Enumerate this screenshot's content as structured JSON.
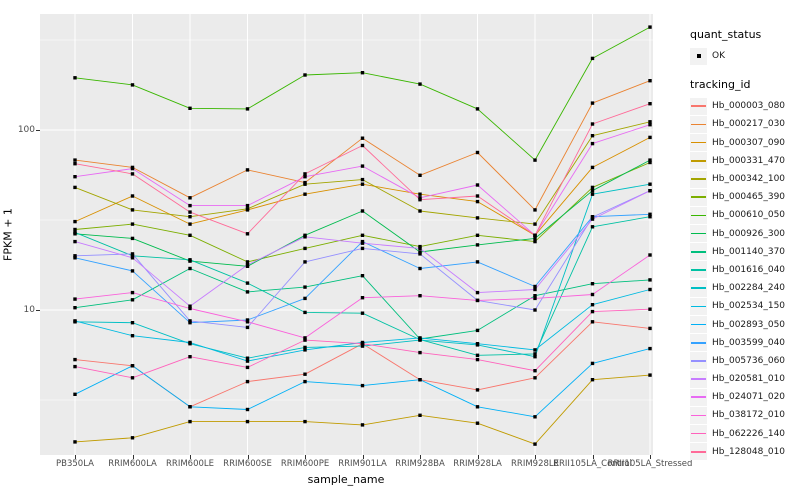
{
  "chart_data": {
    "type": "line",
    "title": "",
    "xlabel": "sample_name",
    "ylabel": "FPKM + 1",
    "y_scale": "log10",
    "ylim": [
      1.56,
      441
    ],
    "grid": true,
    "legend_position": "right",
    "panel_bg": "#EBEBEB",
    "grid_color": "#FFFFFF",
    "point_color": "#000000",
    "y_ticks": [
      {
        "value": 100,
        "label": "100"
      },
      {
        "value": 10,
        "label": "10"
      }
    ],
    "y_minor_ticks": [
      3.1623,
      31.623,
      316.23
    ],
    "legend": {
      "quant_status_title": "quant_status",
      "quant_status_ok": "OK",
      "tracking_title": "tracking_id"
    },
    "categories": [
      "PB350LA",
      "RRIM600LA",
      "RRIM600LE",
      "RRIM600SE",
      "RRIM600PE",
      "RRIM901LA",
      "RRIM928BA",
      "RRIM928LA",
      "RRIM928LE",
      "RRII105LA_Control",
      "RRII105LA_Stressed"
    ],
    "series": [
      {
        "name": "Hb_000003_080",
        "color": "#F8766D",
        "values": [
          5.3,
          4.9,
          2.9,
          4.0,
          4.4,
          6.5,
          4.1,
          3.6,
          4.2,
          8.6,
          7.9
        ]
      },
      {
        "name": "Hb_000217_030",
        "color": "#EA8331",
        "values": [
          68,
          62,
          42,
          60,
          51,
          90,
          56,
          75,
          36,
          141,
          188
        ]
      },
      {
        "name": "Hb_000307_090",
        "color": "#D89000",
        "values": [
          31,
          43,
          30,
          36,
          44,
          50,
          44,
          40,
          26,
          62,
          91
        ]
      },
      {
        "name": "Hb_000331_470",
        "color": "#C09B00",
        "values": [
          1.85,
          1.95,
          2.4,
          2.4,
          2.4,
          2.3,
          2.6,
          2.35,
          1.8,
          4.1,
          4.35
        ]
      },
      {
        "name": "Hb_000342_100",
        "color": "#A3A500",
        "values": [
          48,
          36,
          33,
          36.5,
          50,
          53,
          35.5,
          32.5,
          30,
          93,
          111
        ]
      },
      {
        "name": "Hb_000465_390",
        "color": "#7CAE00",
        "values": [
          28,
          30,
          26,
          18.5,
          22,
          26,
          22.5,
          26,
          24,
          48,
          66
        ]
      },
      {
        "name": "Hb_000610_050",
        "color": "#39B600",
        "values": [
          195,
          178,
          132,
          131,
          202,
          208,
          180,
          131,
          68,
          250,
          373
        ]
      },
      {
        "name": "Hb_000926_300",
        "color": "#00BB4E",
        "values": [
          26.5,
          25,
          18.7,
          17.5,
          26,
          35.5,
          21,
          23,
          25,
          46,
          68
        ]
      },
      {
        "name": "Hb_001140_370",
        "color": "#00BF7D",
        "values": [
          10.3,
          11.4,
          17,
          12.6,
          13.4,
          15.5,
          6.9,
          7.7,
          12,
          14,
          14.7
        ]
      },
      {
        "name": "Hb_001616_040",
        "color": "#00C1A3",
        "values": [
          27,
          20,
          19,
          14.1,
          9.7,
          9.6,
          6.85,
          5.6,
          5.7,
          29,
          33
        ]
      },
      {
        "name": "Hb_002284_240",
        "color": "#00BFC4",
        "values": [
          8.6,
          8.5,
          6.5,
          5.4,
          6.2,
          6.3,
          6.8,
          6.4,
          5.5,
          44,
          50
        ]
      },
      {
        "name": "Hb_002534_150",
        "color": "#00BAE0",
        "values": [
          8.7,
          7.2,
          6.6,
          5.2,
          6.0,
          6.6,
          7.0,
          6.5,
          6.0,
          10.7,
          13
        ]
      },
      {
        "name": "Hb_002893_050",
        "color": "#00B0F6",
        "values": [
          3.4,
          4.9,
          2.9,
          2.8,
          4.0,
          3.8,
          4.1,
          2.9,
          2.55,
          5.05,
          6.1
        ]
      },
      {
        "name": "Hb_003599_040",
        "color": "#35A2FF",
        "values": [
          19.5,
          16.5,
          8.5,
          8.8,
          11.6,
          24,
          17,
          18.5,
          13.5,
          33,
          34
        ]
      },
      {
        "name": "Hb_005736_060",
        "color": "#9590FF",
        "values": [
          20,
          20.5,
          8.7,
          8.0,
          18.5,
          22,
          20.5,
          11.3,
          10,
          32.8,
          46
        ]
      },
      {
        "name": "Hb_020581_010",
        "color": "#C77CFF",
        "values": [
          24,
          19.5,
          10.5,
          17.8,
          25.5,
          23.5,
          22,
          12.5,
          13,
          32,
          46
        ]
      },
      {
        "name": "Hb_024071_020",
        "color": "#E76BF3",
        "values": [
          55,
          61,
          38,
          38,
          55,
          63,
          42,
          49.5,
          26,
          84,
          107
        ]
      },
      {
        "name": "Hb_038172_010",
        "color": "#FA62DB",
        "values": [
          11.5,
          12.5,
          10.2,
          8.6,
          7.0,
          11.7,
          12,
          11.3,
          11.6,
          12.2,
          20.2
        ]
      },
      {
        "name": "Hb_062226_140",
        "color": "#FF62BC",
        "values": [
          4.85,
          4.2,
          5.5,
          4.8,
          6.8,
          6.5,
          5.8,
          5.3,
          4.6,
          9.8,
          10.1
        ]
      },
      {
        "name": "Hb_128048_010",
        "color": "#FF6A98",
        "values": [
          65,
          57,
          35,
          26.5,
          57,
          82,
          41,
          43,
          26,
          108,
          140
        ]
      }
    ]
  }
}
